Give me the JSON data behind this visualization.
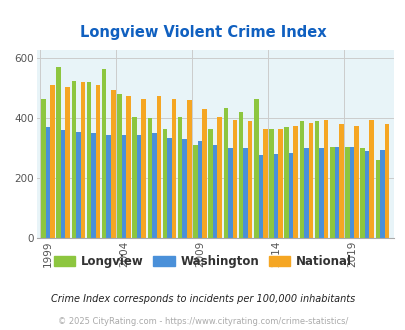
{
  "title": "Longview Violent Crime Index",
  "title_color": "#1060c0",
  "footnote1": "Crime Index corresponds to incidents per 100,000 inhabitants",
  "footnote2": "© 2025 CityRating.com - https://www.cityrating.com/crime-statistics/",
  "years": [
    1999,
    2000,
    2001,
    2002,
    2003,
    2004,
    2005,
    2006,
    2007,
    2008,
    2009,
    2010,
    2011,
    2012,
    2013,
    2014,
    2015,
    2016,
    2017,
    2018,
    2019,
    2020,
    2021
  ],
  "longview": [
    465,
    570,
    525,
    520,
    565,
    480,
    405,
    400,
    365,
    405,
    310,
    365,
    435,
    420,
    465,
    365,
    370,
    390,
    390,
    305,
    305,
    300,
    260
  ],
  "washington": [
    370,
    360,
    355,
    350,
    345,
    345,
    345,
    350,
    335,
    330,
    325,
    310,
    300,
    300,
    275,
    280,
    285,
    300,
    300,
    305,
    305,
    290,
    295
  ],
  "national": [
    510,
    505,
    520,
    510,
    495,
    475,
    465,
    475,
    465,
    460,
    430,
    405,
    395,
    390,
    365,
    365,
    375,
    385,
    395,
    380,
    375,
    395,
    380
  ],
  "color_longview": "#8dc63f",
  "color_washington": "#4a90d9",
  "color_national": "#f5a623",
  "bg_color": "#e8f4f8",
  "ylim": [
    0,
    630
  ],
  "yticks": [
    0,
    200,
    400,
    600
  ],
  "legend_labels": [
    "Longview",
    "Washington",
    "National"
  ],
  "bar_width": 0.3,
  "labeled_years": [
    1999,
    2004,
    2009,
    2014,
    2019
  ]
}
